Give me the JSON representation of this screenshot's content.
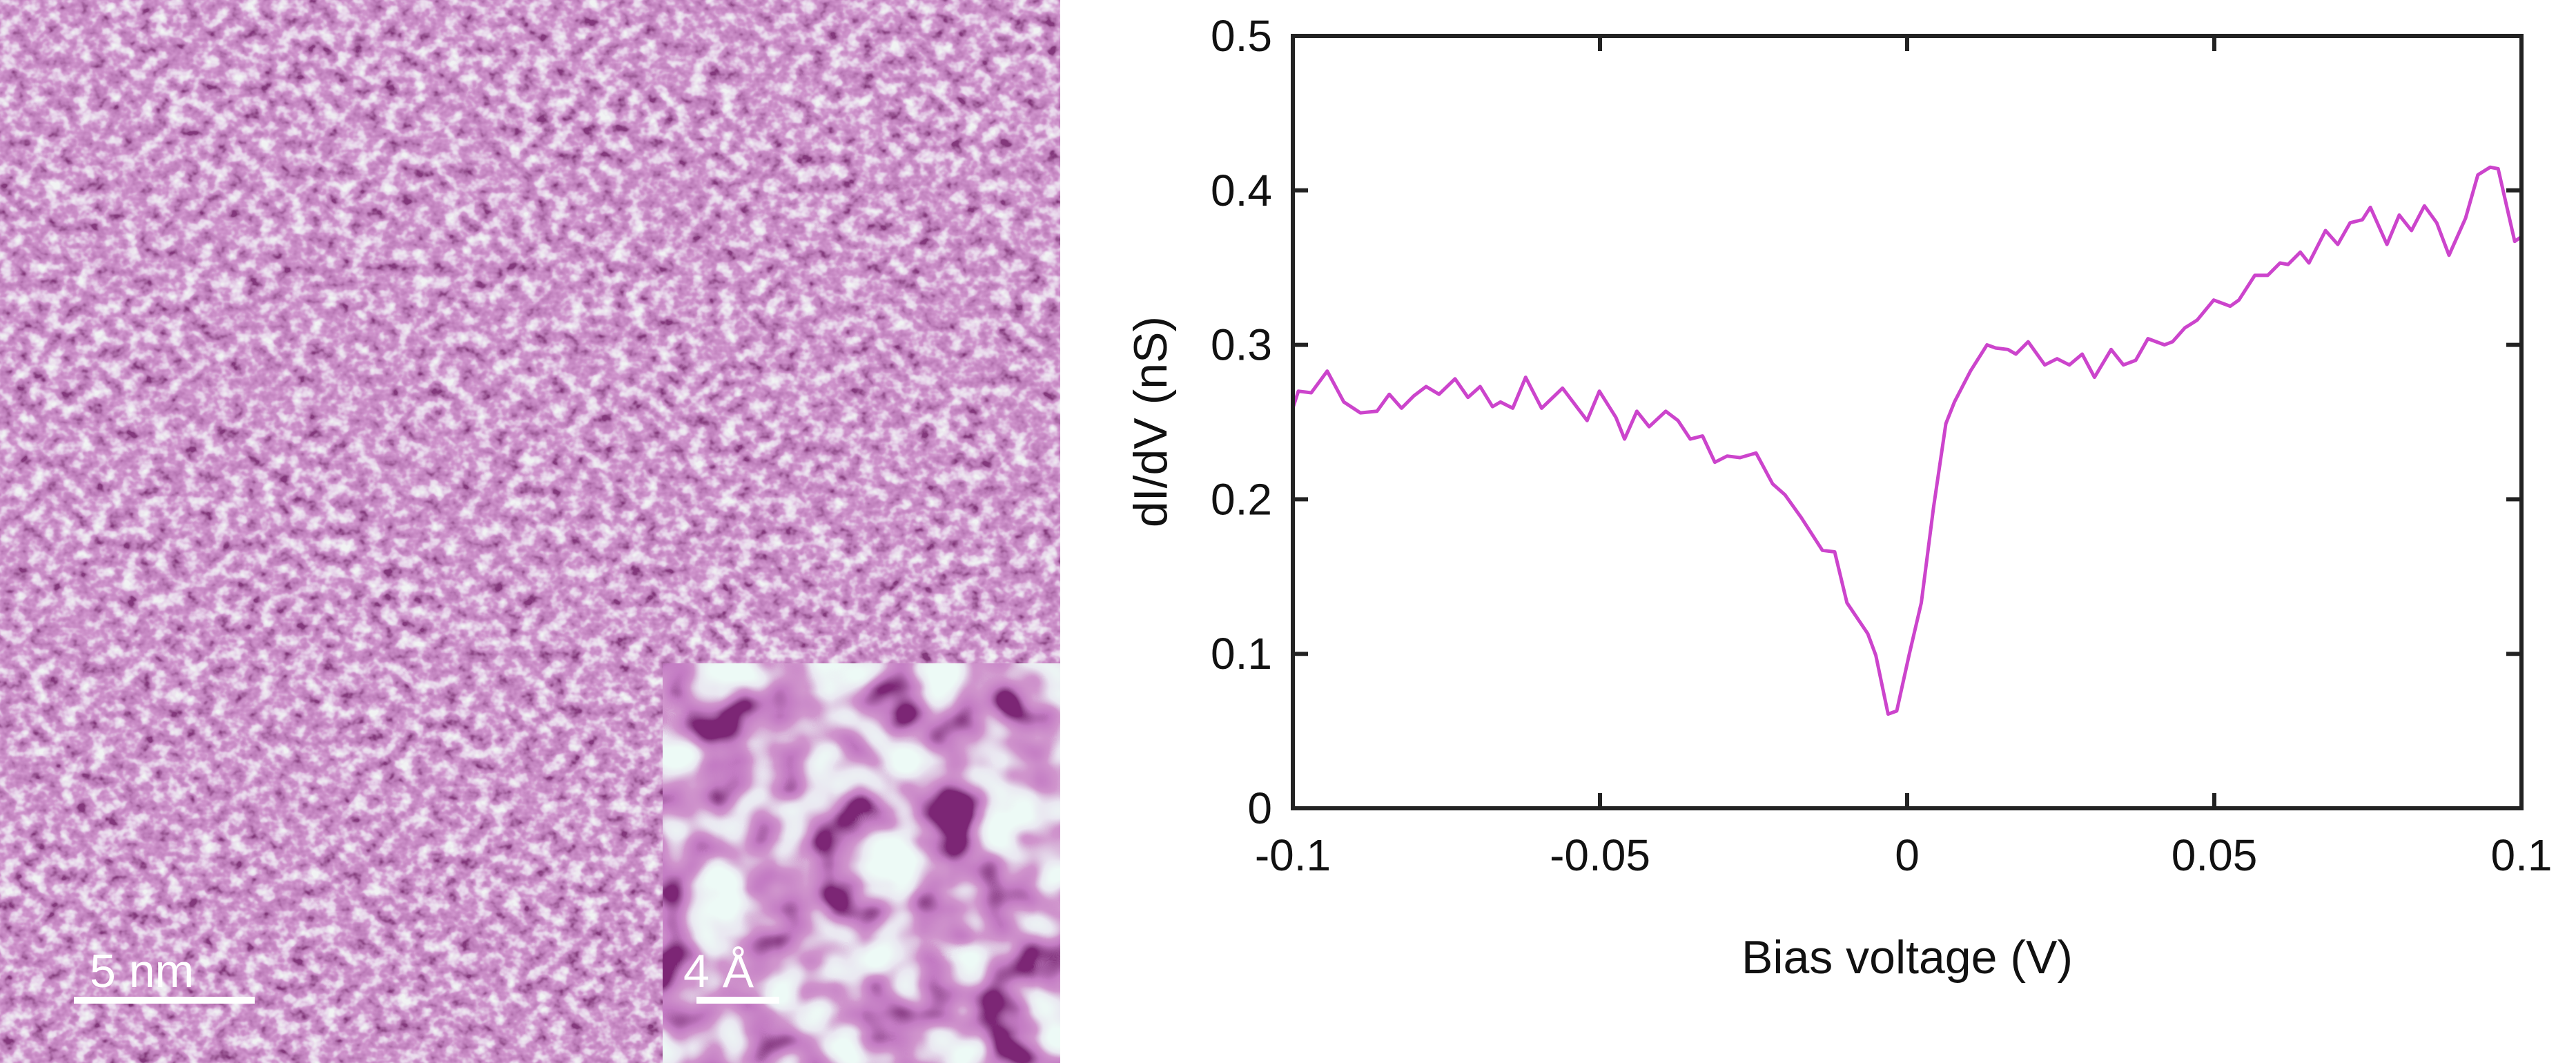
{
  "image_panel": {
    "main_scalebar_label": "5 nm",
    "inset_scalebar_label": "4 Å",
    "colormap": {
      "dark": "#3a0a32",
      "mid": "#a0469c",
      "light": "#d8f4ec"
    }
  },
  "chart_data": {
    "type": "line",
    "title": "",
    "xlabel": "Bias voltage (V)",
    "ylabel": "dI/dV (nS)",
    "xlim": [
      -0.1,
      0.1
    ],
    "ylim": [
      0,
      0.5
    ],
    "xticks": [
      -0.1,
      -0.05,
      0,
      0.05,
      0.1
    ],
    "xtick_labels": [
      "-0.1",
      "-0.05",
      "0",
      "0.05",
      "0.1"
    ],
    "yticks": [
      0,
      0.1,
      0.2,
      0.3,
      0.4,
      0.5
    ],
    "ytick_labels": [
      "0",
      "0.1",
      "0.2",
      "0.3",
      "0.4",
      "0.5"
    ],
    "grid": false,
    "series": [
      {
        "name": "dI/dV",
        "color": "#cc44cc",
        "points": [
          [
            -0.1,
            0.259
          ],
          [
            -0.0991,
            0.27
          ],
          [
            -0.097,
            0.269
          ],
          [
            -0.0944,
            0.283
          ],
          [
            -0.0917,
            0.263
          ],
          [
            -0.089,
            0.256
          ],
          [
            -0.0863,
            0.257
          ],
          [
            -0.0843,
            0.268
          ],
          [
            -0.0823,
            0.259
          ],
          [
            -0.0803,
            0.267
          ],
          [
            -0.0783,
            0.273
          ],
          [
            -0.0762,
            0.268
          ],
          [
            -0.0736,
            0.278
          ],
          [
            -0.0715,
            0.266
          ],
          [
            -0.0695,
            0.273
          ],
          [
            -0.0675,
            0.26
          ],
          [
            -0.0662,
            0.263
          ],
          [
            -0.0642,
            0.259
          ],
          [
            -0.0621,
            0.279
          ],
          [
            -0.0595,
            0.259
          ],
          [
            -0.0561,
            0.272
          ],
          [
            -0.0521,
            0.251
          ],
          [
            -0.0501,
            0.27
          ],
          [
            -0.0474,
            0.253
          ],
          [
            -0.046,
            0.239
          ],
          [
            -0.044,
            0.257
          ],
          [
            -0.042,
            0.247
          ],
          [
            -0.0393,
            0.257
          ],
          [
            -0.0373,
            0.251
          ],
          [
            -0.0353,
            0.239
          ],
          [
            -0.0333,
            0.241
          ],
          [
            -0.0313,
            0.224
          ],
          [
            -0.0293,
            0.228
          ],
          [
            -0.0272,
            0.227
          ],
          [
            -0.0246,
            0.23
          ],
          [
            -0.0219,
            0.21
          ],
          [
            -0.0199,
            0.203
          ],
          [
            -0.0172,
            0.188
          ],
          [
            -0.0138,
            0.167
          ],
          [
            -0.0118,
            0.166
          ],
          [
            -0.0098,
            0.133
          ],
          [
            -0.0064,
            0.113
          ],
          [
            -0.0051,
            0.099
          ],
          [
            -0.0031,
            0.061
          ],
          [
            -0.0017,
            0.063
          ],
          [
            0.0003,
            0.099
          ],
          [
            0.0023,
            0.133
          ],
          [
            0.0043,
            0.195
          ],
          [
            0.0063,
            0.249
          ],
          [
            0.0077,
            0.263
          ],
          [
            0.0103,
            0.283
          ],
          [
            0.013,
            0.3
          ],
          [
            0.0144,
            0.298
          ],
          [
            0.0164,
            0.297
          ],
          [
            0.0177,
            0.294
          ],
          [
            0.0197,
            0.302
          ],
          [
            0.0224,
            0.287
          ],
          [
            0.0244,
            0.291
          ],
          [
            0.0264,
            0.287
          ],
          [
            0.0285,
            0.294
          ],
          [
            0.0305,
            0.279
          ],
          [
            0.0332,
            0.297
          ],
          [
            0.0352,
            0.287
          ],
          [
            0.0372,
            0.29
          ],
          [
            0.0392,
            0.304
          ],
          [
            0.0419,
            0.3
          ],
          [
            0.0432,
            0.302
          ],
          [
            0.0452,
            0.311
          ],
          [
            0.0472,
            0.316
          ],
          [
            0.0499,
            0.329
          ],
          [
            0.0526,
            0.325
          ],
          [
            0.054,
            0.329
          ],
          [
            0.0566,
            0.345
          ],
          [
            0.0587,
            0.345
          ],
          [
            0.0607,
            0.353
          ],
          [
            0.062,
            0.352
          ],
          [
            0.064,
            0.36
          ],
          [
            0.0654,
            0.353
          ],
          [
            0.0681,
            0.374
          ],
          [
            0.0701,
            0.365
          ],
          [
            0.0721,
            0.379
          ],
          [
            0.0741,
            0.381
          ],
          [
            0.0754,
            0.389
          ],
          [
            0.0781,
            0.365
          ],
          [
            0.0801,
            0.384
          ],
          [
            0.0821,
            0.374
          ],
          [
            0.0842,
            0.39
          ],
          [
            0.0862,
            0.379
          ],
          [
            0.0882,
            0.358
          ],
          [
            0.0909,
            0.382
          ],
          [
            0.0929,
            0.41
          ],
          [
            0.0949,
            0.415
          ],
          [
            0.0962,
            0.414
          ],
          [
            0.0989,
            0.367
          ],
          [
            0.1,
            0.37
          ]
        ]
      }
    ]
  }
}
